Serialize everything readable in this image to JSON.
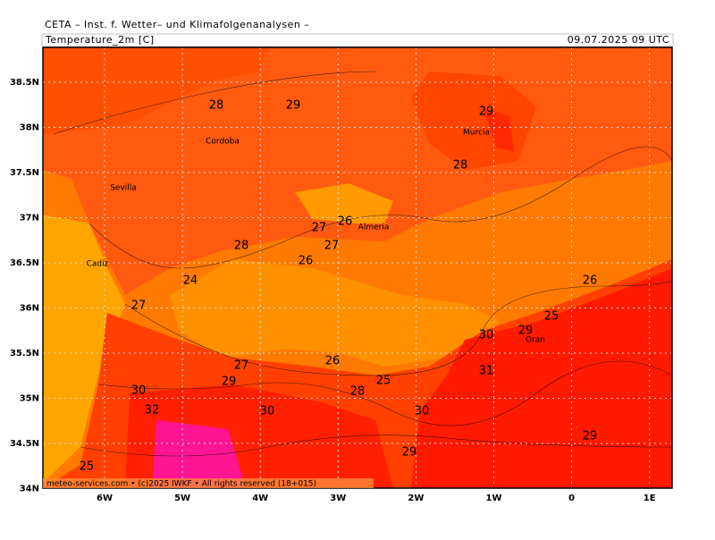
{
  "header": {
    "title": "CETA – Inst. f. Wetter– und Klimafolgenanalysen –",
    "field": "Temperature_2m [C]",
    "valid": "09.07.2025 09 UTC"
  },
  "axes": {
    "lon_labels": [
      "6W",
      "5W",
      "4W",
      "3W",
      "2W",
      "1W",
      "0",
      "1E"
    ],
    "lat_labels": [
      "38.5N",
      "38N",
      "37.5N",
      "37N",
      "36.5N",
      "36N",
      "35.5N",
      "35N",
      "34.5N",
      "34N"
    ]
  },
  "contour_labels": [
    28,
    29,
    29,
    28,
    27,
    26,
    27,
    28,
    26,
    24,
    27,
    26,
    25,
    29,
    30,
    27,
    26,
    29,
    31,
    30,
    28,
    25,
    32,
    30,
    30,
    29,
    29,
    25
  ],
  "places": [
    "Cordoba",
    "Sevilla",
    "Murcia",
    "Almeria",
    "Cadiz",
    "Oran"
  ],
  "footer": "meteo-services.com • (c)2025 IWKF • All rights reserved (18+015)"
}
